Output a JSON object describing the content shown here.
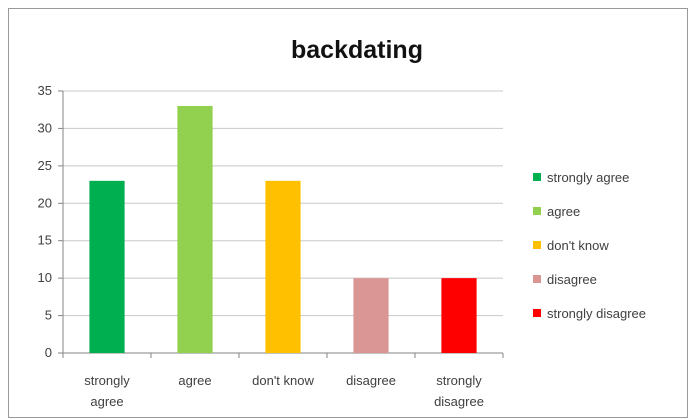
{
  "chart_data": {
    "type": "bar",
    "title": "backdating",
    "categories": [
      "strongly agree",
      "agree",
      "don't know",
      "disagree",
      "strongly disagree"
    ],
    "category_labels": [
      [
        "strongly",
        "agree"
      ],
      [
        "agree"
      ],
      [
        "don't know"
      ],
      [
        "disagree"
      ],
      [
        "strongly",
        "disagree"
      ]
    ],
    "values": [
      23,
      33,
      23,
      10,
      10
    ],
    "colors": [
      "#00b050",
      "#92d050",
      "#ffc000",
      "#da9694",
      "#ff0000"
    ],
    "ylim": [
      0,
      35
    ],
    "yticks": [
      0,
      5,
      10,
      15,
      20,
      25,
      30,
      35
    ],
    "xlabel": "",
    "ylabel": "",
    "grid": true,
    "legend_position": "right",
    "legend": [
      "strongly agree",
      "agree",
      "don't know",
      "disagree",
      "strongly disagree"
    ]
  }
}
